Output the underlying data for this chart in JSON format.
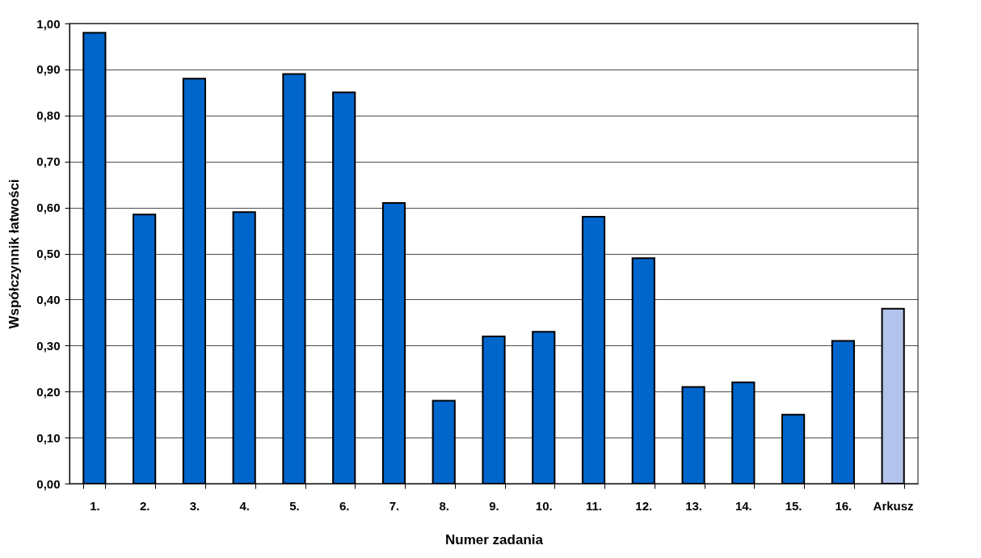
{
  "chart_data": {
    "type": "bar",
    "xlabel": "Numer zadania",
    "ylabel": "Współczynnik łatwości",
    "categories": [
      "1.",
      "2.",
      "3.",
      "4.",
      "5.",
      "6.",
      "7.",
      "8.",
      "9.",
      "10.",
      "11.",
      "12.",
      "13.",
      "14.",
      "15.",
      "16.",
      "Arkusz"
    ],
    "values": [
      0.98,
      0.585,
      0.88,
      0.59,
      0.89,
      0.85,
      0.61,
      0.18,
      0.32,
      0.33,
      0.58,
      0.49,
      0.21,
      0.22,
      0.15,
      0.31,
      0.38
    ],
    "colors": [
      "#0066cc",
      "#0066cc",
      "#0066cc",
      "#0066cc",
      "#0066cc",
      "#0066cc",
      "#0066cc",
      "#0066cc",
      "#0066cc",
      "#0066cc",
      "#0066cc",
      "#0066cc",
      "#0066cc",
      "#0066cc",
      "#0066cc",
      "#0066cc",
      "#b4c3ec"
    ],
    "ylim": [
      0,
      1
    ],
    "yticks": [
      {
        "value": 0,
        "label": "0,00"
      },
      {
        "value": 0.1,
        "label": "0,10"
      },
      {
        "value": 0.2,
        "label": "0,20"
      },
      {
        "value": 0.3,
        "label": "0,30"
      },
      {
        "value": 0.4,
        "label": "0,40"
      },
      {
        "value": 0.5,
        "label": "0,50"
      },
      {
        "value": 0.6,
        "label": "0,60"
      },
      {
        "value": 0.7,
        "label": "0,70"
      },
      {
        "value": 0.8,
        "label": "0,80"
      },
      {
        "value": 0.9,
        "label": "0,90"
      },
      {
        "value": 1,
        "label": "1,00"
      }
    ],
    "grid": "y"
  }
}
